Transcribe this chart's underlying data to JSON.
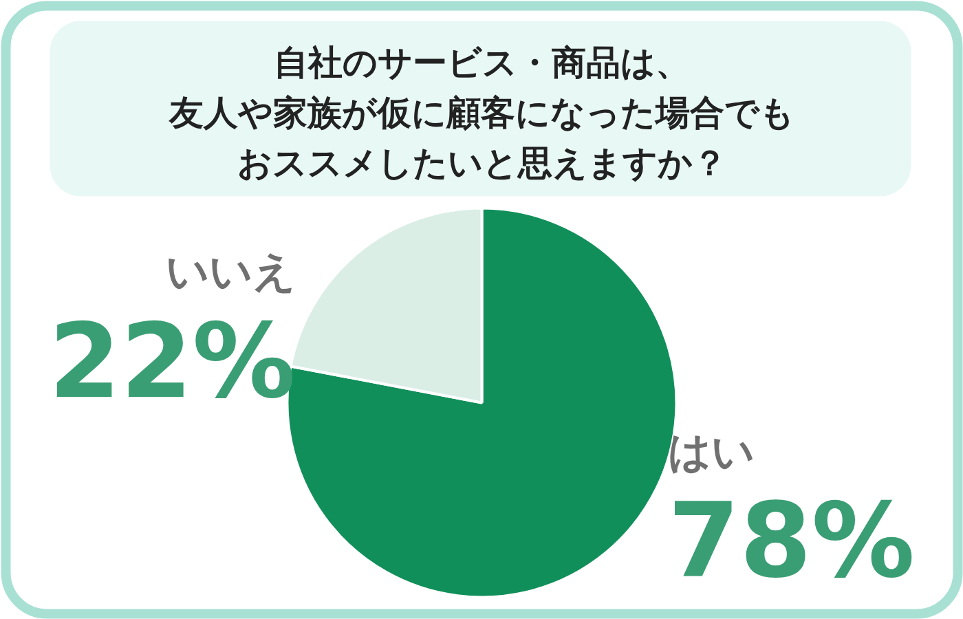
{
  "chart_data": {
    "type": "pie",
    "title": "自社のサービス・商品は、友人や家族が仮に顧客になった場合でもおススメしたいと思えますか？",
    "categories": [
      "はい",
      "いいえ"
    ],
    "values": [
      78,
      22
    ],
    "colors": [
      "#118f5a",
      "#daeee6"
    ],
    "value_labels": [
      "78%",
      "22%"
    ]
  }
}
